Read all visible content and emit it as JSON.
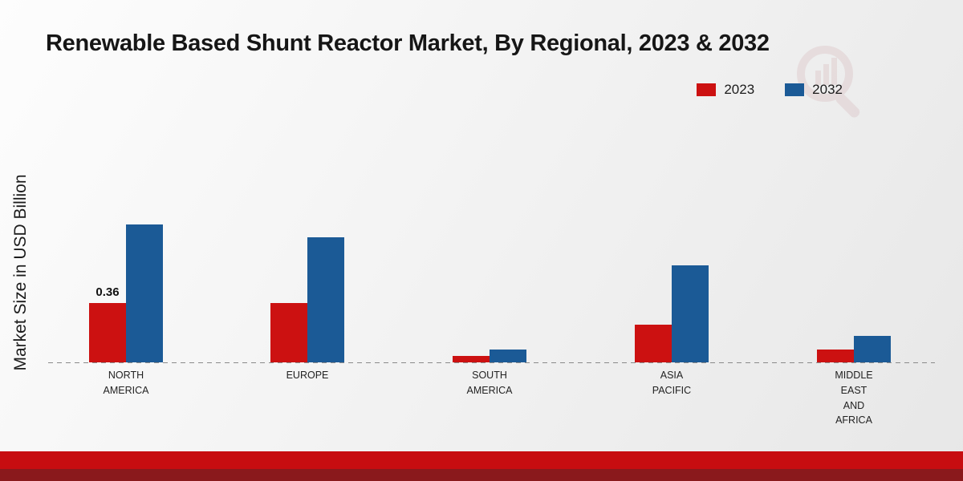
{
  "chart_data": {
    "type": "bar",
    "title": "Renewable Based Shunt Reactor Market, By Regional, 2023 & 2032",
    "ylabel": "Market Size in USD Billion",
    "xlabel": "",
    "categories": [
      "NORTH\nAMERICA",
      "EUROPE",
      "SOUTH\nAMERICA",
      "ASIA\nPACIFIC",
      "MIDDLE\nEAST\nAND\nAFRICA"
    ],
    "series": [
      {
        "name": "2023",
        "color": "#cc1111",
        "values": [
          0.36,
          0.36,
          0.04,
          0.23,
          0.08
        ]
      },
      {
        "name": "2032",
        "color": "#1b5a96",
        "values": [
          0.84,
          0.76,
          0.08,
          0.59,
          0.16
        ]
      }
    ],
    "data_labels": [
      {
        "series": 0,
        "category": 0,
        "text": "0.36"
      }
    ],
    "ylim": [
      0,
      1
    ],
    "grid": false,
    "legend_position": "top-right",
    "baseline_style": "dashed"
  }
}
